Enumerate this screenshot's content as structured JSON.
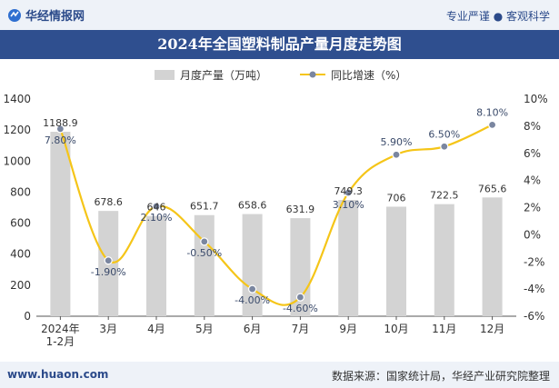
{
  "header": {
    "brand": "华经情报网",
    "slogan": "专业严谨 ● 客观科学"
  },
  "footer": {
    "site": "www.huaon.com",
    "source": "数据来源：国家统计局，华经产业研究院整理"
  },
  "colors": {
    "bar": "#d3d3d3",
    "line": "#f5c518",
    "marker": "#7a86a0",
    "title_bg": "#2f4f8f"
  },
  "chart_data": {
    "type": "bar",
    "title": "2024年全国塑料制品产量月度走势图",
    "categories": [
      "2024年\n1-2月",
      "3月",
      "4月",
      "5月",
      "6月",
      "7月",
      "9月",
      "10月",
      "11月",
      "12月"
    ],
    "series": [
      {
        "name": "月度产量（万吨）",
        "type": "bar",
        "axis": "left",
        "values": [
          1188.9,
          678.6,
          646,
          651.7,
          658.6,
          631.9,
          749.3,
          706,
          722.5,
          765.6
        ],
        "labels": [
          "1188.9",
          "678.6",
          "646",
          "651.7",
          "658.6",
          "631.9",
          "749.3",
          "706",
          "722.5",
          "765.6"
        ]
      },
      {
        "name": "同比增速（%）",
        "type": "line",
        "axis": "right",
        "values": [
          7.8,
          -1.9,
          2.1,
          -0.5,
          -4.0,
          -4.6,
          3.1,
          5.9,
          6.5,
          8.1
        ],
        "labels": [
          "7.80%",
          "-1.90%",
          "2.10%",
          "-0.50%",
          "-4.00%",
          "-4.60%",
          "3.10%",
          "5.90%",
          "6.50%",
          "8.10%"
        ]
      }
    ],
    "left_axis": {
      "min": 0,
      "max": 1400,
      "ticks": [
        0,
        200,
        400,
        600,
        800,
        1000,
        1200,
        1400
      ]
    },
    "right_axis": {
      "min": -6,
      "max": 10,
      "ticks": [
        -6,
        -4,
        -2,
        0,
        2,
        4,
        6,
        8,
        10
      ],
      "tick_labels": [
        "-6%",
        "-4%",
        "-2%",
        "0%",
        "2%",
        "4%",
        "6%",
        "8%",
        "10%"
      ]
    },
    "legend": {
      "position": "top",
      "items": [
        "月度产量（万吨）",
        "同比增速（%）"
      ]
    }
  }
}
